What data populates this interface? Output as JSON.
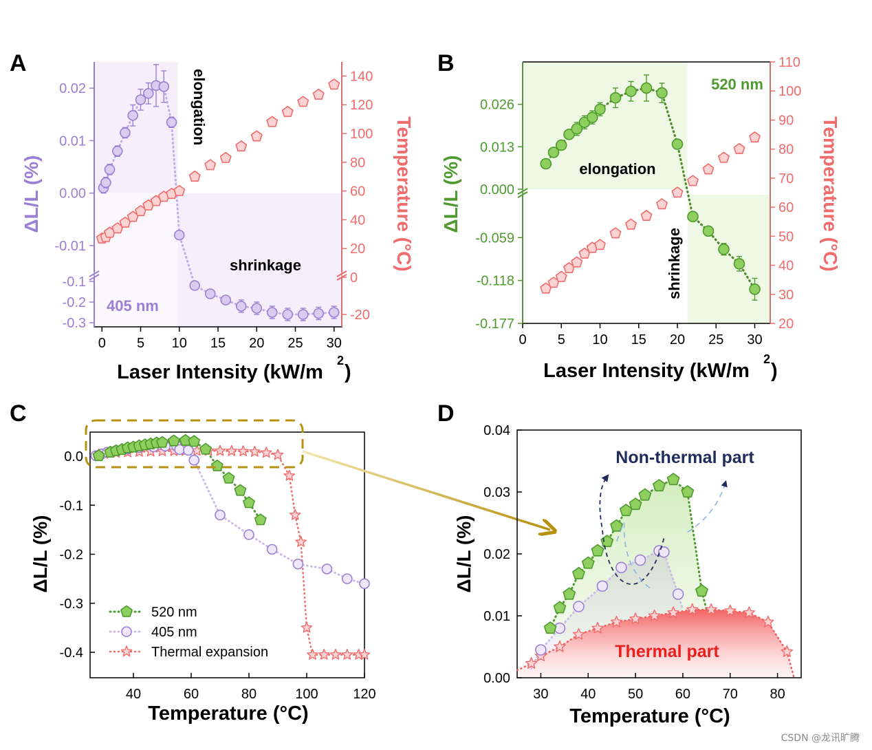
{
  "watermark": "CSDN @龙讯旷腾",
  "colors": {
    "purple": "#9b7fd4",
    "purple_fill": "#d9ccef",
    "purple_shade": "#f5effb",
    "green": "#4e9a2e",
    "green_fill": "#8fcf5f",
    "green_shade": "#eef8e4",
    "red": "#f06b6b",
    "red_fill": "#fbd3d3",
    "navy": "#1f2d5c",
    "gold": "#b8900f"
  },
  "chart_data": [
    {
      "panel": "A",
      "type": "scatter",
      "xlabel": "Laser Intensity (kW/m",
      "xlabel_sup": "2",
      "xlabel_close": ")",
      "ylabel_left": "ΔL/L (%)",
      "ylabel_right": "Temperature (°C)",
      "annotations": [
        "elongation",
        "shrinkage",
        "405 nm"
      ],
      "xlim": [
        -1,
        31
      ],
      "xticks": [
        "0",
        "5",
        "10",
        "15",
        "20",
        "25",
        "30"
      ],
      "upper_ylim": [
        -0.015,
        0.025
      ],
      "upper_yticks": [
        "0.02",
        "0.01",
        "0.00",
        "-0.01"
      ],
      "lower_ylim": [
        -0.32,
        -0.08
      ],
      "lower_yticks": [
        "-0.1",
        "-0.2",
        "-0.3"
      ],
      "right_ylim_upper": [
        0,
        145
      ],
      "right_yticks_upper": [
        "140",
        "120",
        "100",
        "80",
        "60",
        "40",
        "20",
        "0"
      ],
      "right_ylim_lower": [
        -25,
        -5
      ],
      "right_yticks_lower": [
        "-20"
      ],
      "series_dl": {
        "name": "405 nm ΔL/L",
        "x": [
          0.2,
          0.5,
          1,
          2,
          3,
          4,
          5,
          6,
          7,
          8,
          9
        ],
        "y": [
          0.001,
          0.002,
          0.0045,
          0.008,
          0.0115,
          0.0148,
          0.0178,
          0.019,
          0.0205,
          0.0203,
          0.0135
        ],
        "err": [
          0.001,
          0.001,
          0.001,
          0.001,
          0.001,
          0.002,
          0.002,
          0.002,
          0.004,
          0.003,
          0.001
        ]
      },
      "series_dl_low": {
        "x": [
          10,
          12,
          14,
          16,
          18,
          20,
          22,
          24,
          26,
          28,
          30
        ],
        "y": [
          -0.008,
          -0.12,
          -0.16,
          -0.19,
          -0.22,
          -0.23,
          -0.25,
          -0.26,
          -0.26,
          -0.255,
          -0.25
        ],
        "err": [
          0,
          0.01,
          0.01,
          0.02,
          0.03,
          0.03,
          0.03,
          0.03,
          0.03,
          0.03,
          0.03
        ]
      },
      "series_temp": {
        "name": "Temperature",
        "x": [
          0,
          0.5,
          1,
          2,
          3,
          4,
          5,
          6,
          7,
          8,
          9,
          10,
          12,
          14,
          16,
          18,
          20,
          22,
          24,
          26,
          28,
          30
        ],
        "y": [
          27,
          28,
          31,
          34,
          38,
          42,
          46,
          50,
          53,
          56,
          58,
          60,
          70,
          78,
          83,
          91,
          98,
          108,
          115,
          122,
          127,
          134
        ]
      }
    },
    {
      "panel": "B",
      "type": "scatter",
      "xlabel": "Laser Intensity (kW/m",
      "xlabel_sup": "2",
      "xlabel_close": ")",
      "ylabel_left": "ΔL/L (%)",
      "ylabel_right": "Temperature (°C)",
      "annotations": [
        "520 nm",
        "elongation",
        "shrinkage"
      ],
      "xlim": [
        0,
        32
      ],
      "xticks": [
        "0",
        "5",
        "10",
        "15",
        "20",
        "25",
        "30"
      ],
      "upper_ylim": [
        0,
        0.039
      ],
      "upper_yticks": [
        "0.026",
        "0.013",
        "0.000"
      ],
      "lower_ylim": [
        -0.177,
        0
      ],
      "lower_yticks": [
        "-0.059",
        "-0.118",
        "-0.177"
      ],
      "right_ylim": [
        20,
        110
      ],
      "right_yticks": [
        "110",
        "100",
        "90",
        "80",
        "70",
        "60",
        "50",
        "40",
        "30",
        "20"
      ],
      "series_dl": {
        "name": "520 nm ΔL/L",
        "x": [
          3,
          4,
          5,
          6,
          7,
          8,
          9,
          10,
          12,
          14,
          16,
          18,
          20
        ],
        "y": [
          0.0078,
          0.0113,
          0.0135,
          0.0168,
          0.0185,
          0.0205,
          0.022,
          0.0245,
          0.028,
          0.03,
          0.031,
          0.0295,
          0.0138
        ],
        "err": [
          0.001,
          0.001,
          0.001,
          0.001,
          0.002,
          0.002,
          0.002,
          0.002,
          0.003,
          0.003,
          0.004,
          0.003,
          0.001
        ]
      },
      "series_dl_low": {
        "x": [
          22,
          24,
          26,
          28,
          30
        ],
        "y": [
          -0.03,
          -0.05,
          -0.075,
          -0.095,
          -0.13
        ],
        "err": [
          0,
          0.005,
          0.008,
          0.01,
          0.015
        ]
      },
      "series_temp": {
        "name": "Temperature",
        "x": [
          3,
          4,
          5,
          6,
          7,
          8,
          9,
          10,
          12,
          14,
          16,
          18,
          20,
          22,
          24,
          26,
          28,
          30
        ],
        "y": [
          32,
          34,
          36,
          39,
          41,
          44,
          46,
          47,
          51,
          54,
          57,
          61,
          65,
          69,
          73,
          77,
          80,
          84
        ]
      }
    },
    {
      "panel": "C",
      "type": "scatter",
      "xlabel": "Temperature (°C)",
      "ylabel": "ΔL/L (%)",
      "xlim": [
        25,
        120
      ],
      "xticks": [
        "40",
        "60",
        "80",
        "100",
        "120"
      ],
      "ylim": [
        -0.45,
        0.05
      ],
      "yticks": [
        "0.0",
        "-0.1",
        "-0.2",
        "-0.3",
        "-0.4"
      ],
      "legend": [
        "520 nm",
        "405 nm",
        "Thermal expansion"
      ],
      "series": [
        {
          "name": "520 nm",
          "x": [
            28,
            32,
            34,
            36,
            38,
            40,
            42,
            44,
            46,
            48,
            50,
            54,
            58,
            61,
            65,
            69,
            73,
            77,
            80,
            84
          ],
          "y": [
            0.0008,
            0.008,
            0.011,
            0.0135,
            0.017,
            0.0185,
            0.021,
            0.023,
            0.025,
            0.027,
            0.028,
            0.031,
            0.032,
            0.03,
            0.014,
            -0.02,
            -0.045,
            -0.07,
            -0.095,
            -0.13
          ]
        },
        {
          "name": "405 nm",
          "x": [
            27,
            28,
            29,
            31,
            34,
            38,
            42,
            47,
            51,
            55,
            56,
            59,
            61,
            70,
            80,
            88,
            97,
            107,
            114,
            120
          ],
          "y": [
            0.001,
            0.002,
            0.0045,
            0.008,
            0.0115,
            0.0148,
            0.0178,
            0.019,
            0.0205,
            0.0203,
            0.0135,
            0.012,
            -0.008,
            -0.12,
            -0.16,
            -0.19,
            -0.22,
            -0.23,
            -0.25,
            -0.26
          ]
        },
        {
          "name": "Thermal expansion",
          "x": [
            28,
            30,
            34,
            38,
            42,
            46,
            50,
            54,
            58,
            62,
            66,
            70,
            74,
            78,
            82,
            86,
            90,
            94,
            96,
            98,
            100,
            102,
            106,
            110,
            114,
            118,
            120
          ],
          "y": [
            0.0035,
            0.005,
            0.007,
            0.008,
            0.009,
            0.0095,
            0.01,
            0.0105,
            0.011,
            0.011,
            0.011,
            0.0108,
            0.0105,
            0.01,
            0.009,
            0.007,
            0.0025,
            -0.04,
            -0.12,
            -0.175,
            -0.35,
            -0.405,
            -0.405,
            -0.405,
            -0.405,
            -0.405,
            -0.405
          ]
        }
      ]
    },
    {
      "panel": "D",
      "type": "area",
      "xlabel": "Temperature (°C)",
      "ylabel": "ΔL/L (%)",
      "xlim": [
        25,
        85
      ],
      "xticks": [
        "30",
        "40",
        "50",
        "60",
        "70",
        "80"
      ],
      "ylim": [
        0,
        0.04
      ],
      "yticks": [
        "0.04",
        "0.03",
        "0.02",
        "0.01",
        "0.00"
      ],
      "annotations": [
        "Non-thermal part",
        "Thermal part"
      ],
      "series": [
        {
          "name": "520 nm",
          "x": [
            32,
            34,
            36,
            38,
            40,
            42,
            44,
            46,
            48,
            50,
            52,
            55,
            58,
            61,
            64
          ],
          "y": [
            0.008,
            0.0113,
            0.0135,
            0.0168,
            0.0185,
            0.0205,
            0.022,
            0.0245,
            0.027,
            0.028,
            0.0295,
            0.031,
            0.032,
            0.03,
            0.014
          ]
        },
        {
          "name": "405 nm",
          "x": [
            30,
            34,
            38,
            43,
            47,
            51,
            55,
            56,
            59
          ],
          "y": [
            0.0045,
            0.008,
            0.0115,
            0.0148,
            0.0178,
            0.019,
            0.0205,
            0.0203,
            0.0135
          ]
        },
        {
          "name": "Thermal expansion",
          "x": [
            28,
            30,
            34,
            38,
            42,
            46,
            50,
            54,
            58,
            62,
            66,
            70,
            74,
            78,
            82
          ],
          "y": [
            0.0023,
            0.0035,
            0.005,
            0.007,
            0.008,
            0.009,
            0.0095,
            0.01,
            0.0105,
            0.011,
            0.011,
            0.0108,
            0.0105,
            0.009,
            0.0042
          ]
        }
      ]
    }
  ],
  "panel_labels": [
    "A",
    "B",
    "C",
    "D"
  ]
}
